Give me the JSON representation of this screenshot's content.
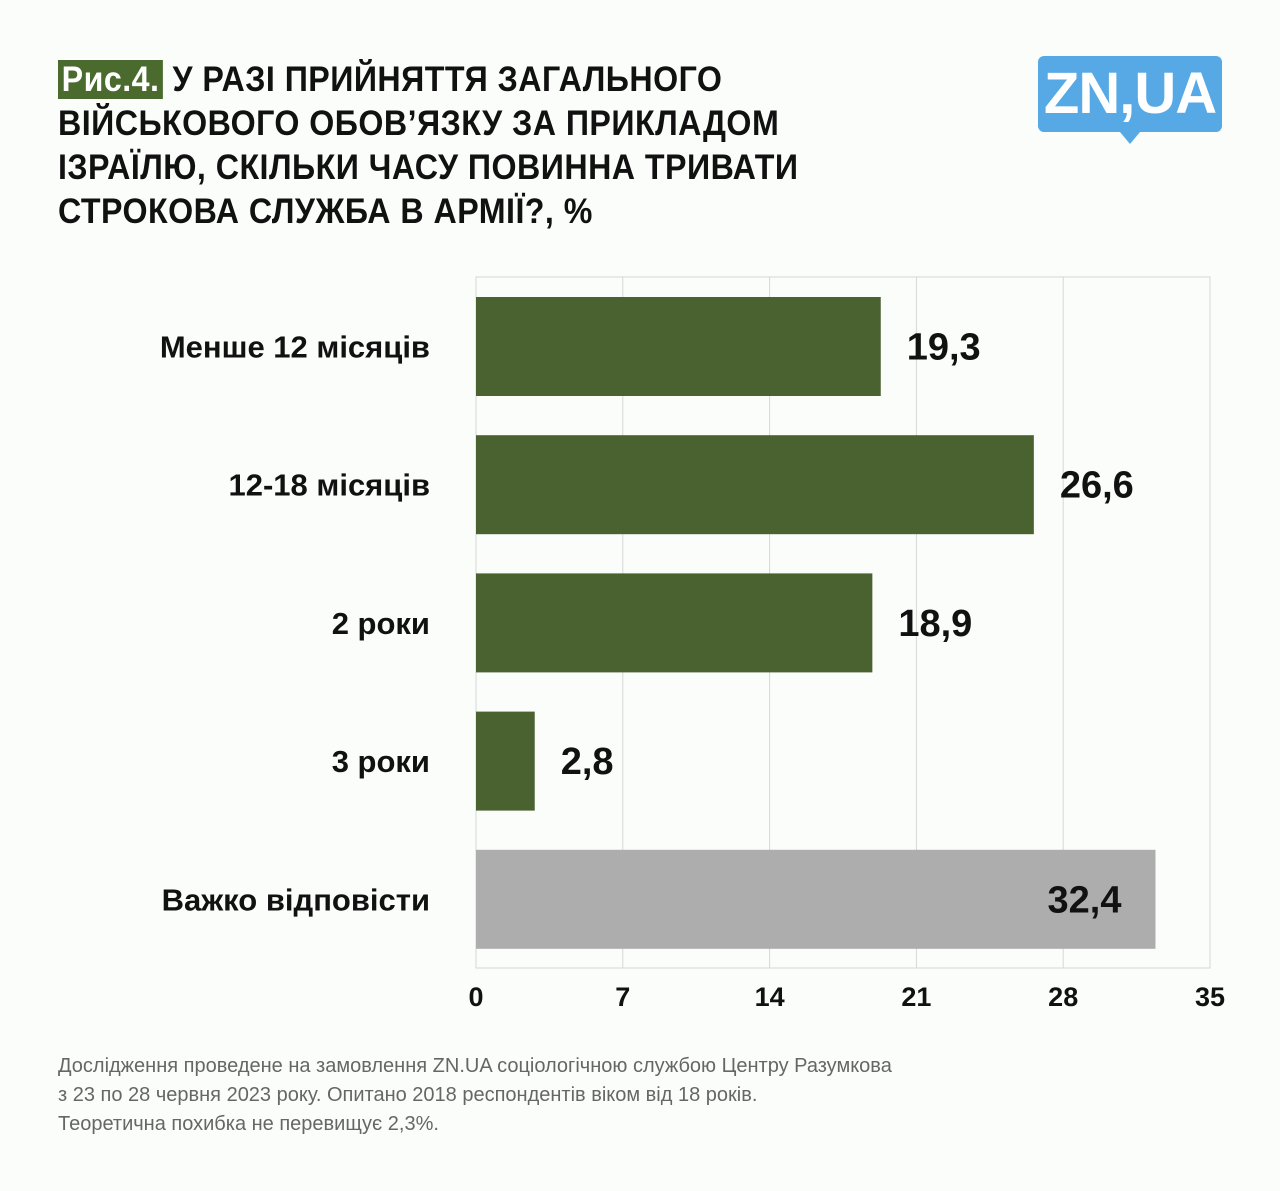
{
  "title": {
    "fig_label": "Рис.4.",
    "text": "У РАЗІ ПРИЙНЯТТЯ ЗАГАЛЬНОГО ВІЙСЬКОВОГО ОБОВ’ЯЗКУ ЗА ПРИКЛАДОМ ІЗРАЇЛЮ, СКІЛЬКИ ЧАСУ ПОВИННА ТРИВАТИ СТРОКОВА СЛУЖБА В АРМІЇ?, %"
  },
  "logo": "ZN,UA",
  "footer": [
    "Дослідження проведене на замовлення ZN.UA соціологічною службою Центру Разумкова",
    "з 23 по 28 червня 2023 року. Опитано 2018 респондентів віком від 18 років.",
    "Теоретична похибка не перевищує 2,3%."
  ],
  "chart_data": {
    "type": "bar",
    "orientation": "horizontal",
    "categories": [
      "Менше 12 місяців",
      "12-18 місяців",
      "2 роки",
      "3 роки",
      "Важко відповісти"
    ],
    "values": [
      19.3,
      26.6,
      18.9,
      2.8,
      32.4
    ],
    "value_labels": [
      "19,3",
      "26,6",
      "18,9",
      "2,8",
      "32,4"
    ],
    "colors": [
      "#4a6130",
      "#4a6130",
      "#4a6130",
      "#4a6130",
      "#adadad"
    ],
    "xlim": [
      0,
      35
    ],
    "xticks": [
      0,
      7,
      14,
      21,
      28,
      35
    ],
    "grid": true
  }
}
